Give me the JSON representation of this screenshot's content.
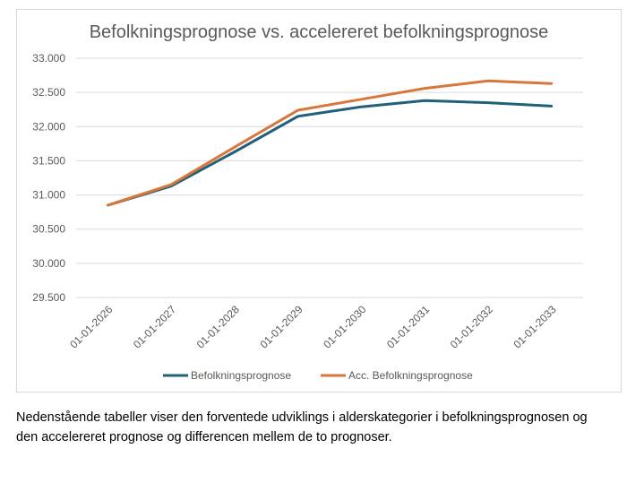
{
  "chart_data": {
    "type": "line",
    "title": "Befolkningsprognose vs. accelereret befolkningsprognose",
    "categories": [
      "01-01-2026",
      "01-01-2027",
      "01-01-2028",
      "01-01-2029",
      "01-01-2030",
      "01-01-2031",
      "01-01-2032",
      "01-01-2033"
    ],
    "series": [
      {
        "name": "Befolkningsprognose",
        "color": "#215f7a",
        "values": [
          30850,
          31130,
          31630,
          32150,
          32290,
          32380,
          32350,
          32300
        ]
      },
      {
        "name": "Acc. Befolkningsprognose",
        "color": "#d9773a",
        "values": [
          30850,
          31150,
          31700,
          32240,
          32400,
          32560,
          32670,
          32630
        ]
      }
    ],
    "yticks": [
      "33.000",
      "32.500",
      "32.000",
      "31.500",
      "31.000",
      "30.500",
      "30.000",
      "29.500"
    ],
    "ylim": [
      29500,
      33000
    ],
    "xlabel": "",
    "ylabel": "",
    "grid": true,
    "legend": "bottom"
  },
  "caption": {
    "line1": "Nedenstående tabeller viser den forventede udviklings i alderskategorier i befolkningsprognosen og",
    "line2": "den accelereret prognose og differencen mellem de to prognoser."
  }
}
